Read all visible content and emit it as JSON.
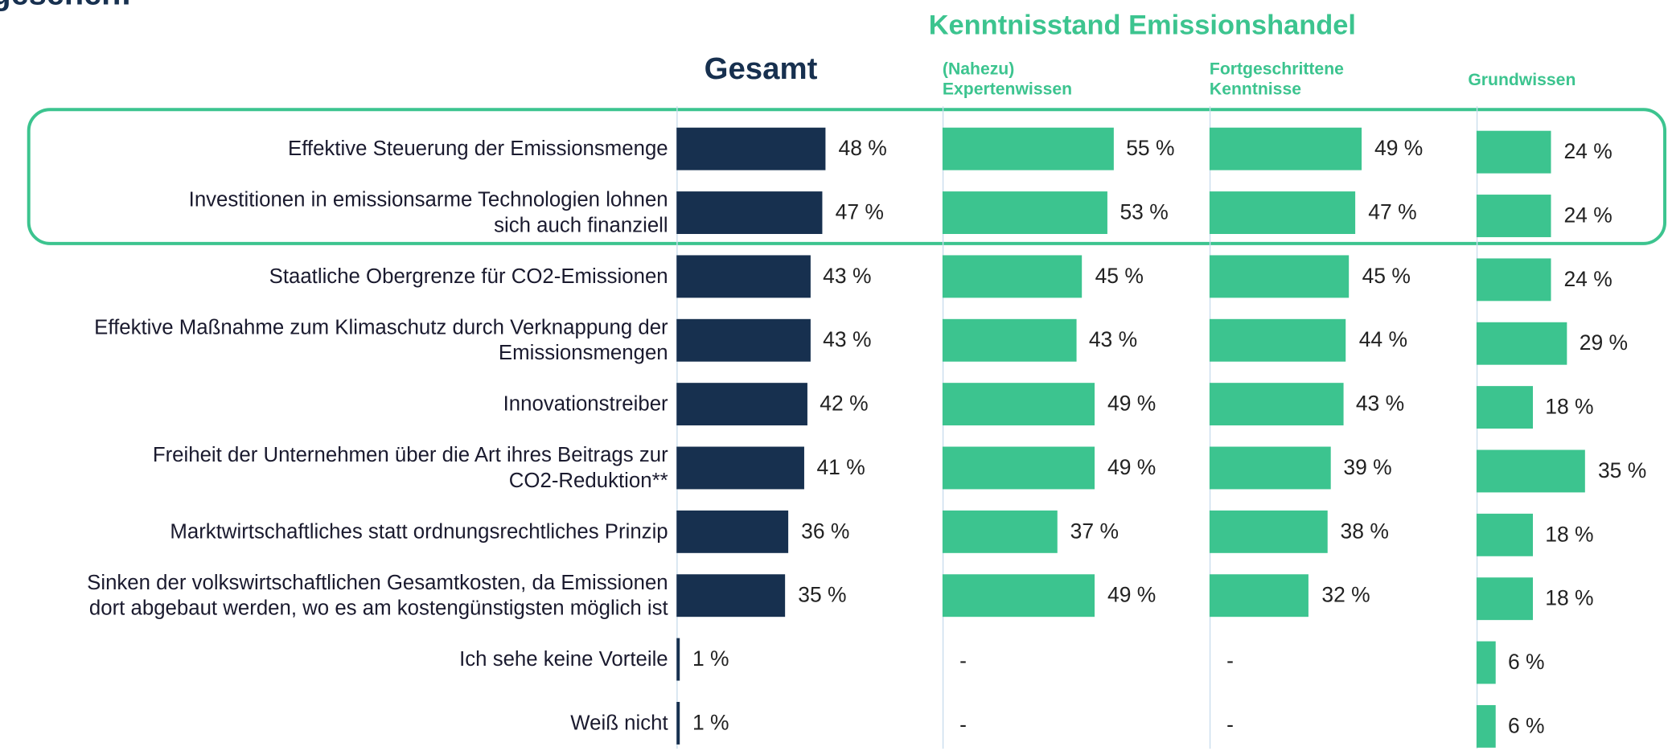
{
  "header": {
    "clipped_title": "gesehen:"
  },
  "chart_data": {
    "type": "bar",
    "orientation": "horizontal",
    "title": "Kenntnisstand  Emissionshandel",
    "categories": [
      "Effektive Steuerung der Emissionsmenge",
      "Investitionen in emissionsarme Technologien lohnen\nsich auch finanziell",
      "Staatliche Obergrenze für CO2-Emissionen",
      "Effektive Maßnahme zum Klimaschutz durch Verknappung der\nEmissionsmengen",
      "Innovationstreiber",
      "Freiheit der Unternehmen über die Art ihres Beitrags zur\nCO2-Reduktion**",
      "Marktwirtschaftliches statt ordnungsrechtliches Prinzip",
      "Sinken der volkswirtschaftlichen Gesamtkosten, da Emissionen\ndort abgebaut werden, wo es am kostengünstigsten möglich ist",
      "Ich sehe keine Vorteile",
      "Weiß nicht"
    ],
    "series": [
      {
        "name": "Gesamt",
        "color": "#17304f",
        "values": [
          48,
          47,
          43,
          43,
          42,
          41,
          36,
          35,
          1,
          1
        ],
        "value_labels": [
          "48 %",
          "47 %",
          "43 %",
          "43 %",
          "42 %",
          "41 %",
          "36 %",
          "35 %",
          "1 %",
          "1 %"
        ]
      },
      {
        "name": "(Nahezu)\nExpertenwissen",
        "color": "#3cc48f",
        "values": [
          55,
          53,
          45,
          43,
          49,
          49,
          37,
          49,
          null,
          null
        ],
        "value_labels": [
          "55 %",
          "53 %",
          "45 %",
          "43 %",
          "49 %",
          "49 %",
          "37 %",
          "49 %",
          "-",
          "-"
        ]
      },
      {
        "name": "Fortgeschrittene\nKenntnisse",
        "color": "#3cc48f",
        "values": [
          49,
          47,
          45,
          44,
          43,
          39,
          38,
          32,
          null,
          null
        ],
        "value_labels": [
          "49 %",
          "47 %",
          "45 %",
          "44 %",
          "43 %",
          "39 %",
          "38 %",
          "32 %",
          "-",
          "-"
        ]
      },
      {
        "name": "Grundwissen",
        "color": "#3cc48f",
        "values": [
          24,
          24,
          24,
          29,
          18,
          35,
          18,
          18,
          6,
          6
        ],
        "value_labels": [
          "24 %",
          "24 %",
          "24 %",
          "29 %",
          "18 %",
          "35 %",
          "18 %",
          "18 %",
          "6 %",
          "6 %"
        ]
      }
    ]
  }
}
